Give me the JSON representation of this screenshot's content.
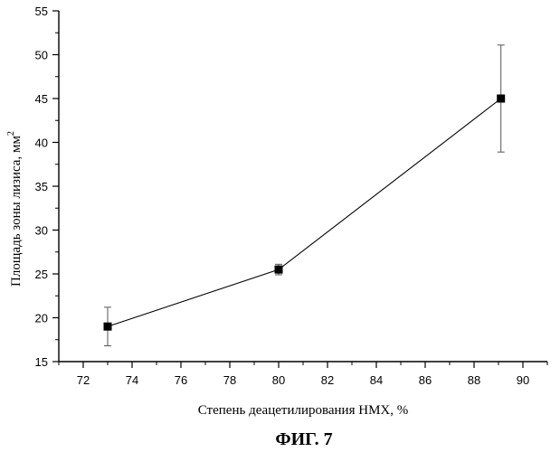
{
  "chart_data": {
    "type": "line",
    "title": "",
    "xlabel": "Степень деацетилирования НМХ, %",
    "ylabel": "Площадь зоны лизиса, мм",
    "ylabel_superscript": "2",
    "xlim": [
      71,
      91
    ],
    "ylim": [
      15,
      55
    ],
    "x_ticks": [
      72,
      74,
      76,
      78,
      80,
      82,
      84,
      86,
      88,
      90
    ],
    "y_ticks": [
      15,
      20,
      25,
      30,
      35,
      40,
      45,
      50,
      55
    ],
    "grid": false,
    "legend": "none",
    "marker": "square",
    "line_color": "#000000",
    "series": [
      {
        "x": [
          73,
          80,
          89.1
        ],
        "y": [
          19,
          25.5,
          45
        ],
        "error": [
          2.2,
          0.6,
          6.1
        ]
      }
    ]
  },
  "caption": "ФИГ. 7"
}
